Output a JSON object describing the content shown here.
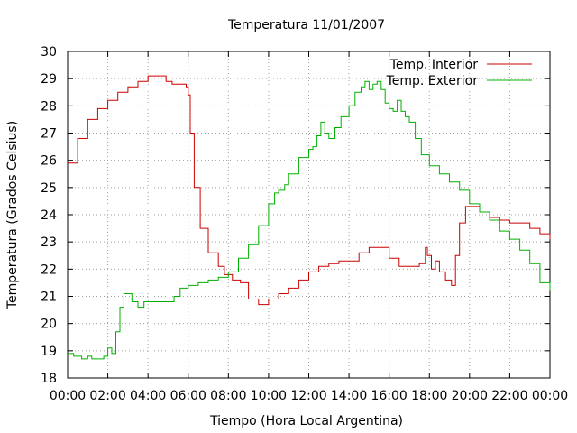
{
  "chart_data": {
    "type": "line",
    "title": "Temperatura 11/01/2007",
    "xlabel": "Tiempo (Hora Local Argentina)",
    "ylabel": "Temperatura (Grados Celsius)",
    "xlim": [
      0,
      24
    ],
    "ylim": [
      18,
      30
    ],
    "x_tick_labels": [
      "00:00",
      "02:00",
      "04:00",
      "06:00",
      "08:00",
      "10:00",
      "12:00",
      "14:00",
      "16:00",
      "18:00",
      "20:00",
      "22:00",
      "00:00"
    ],
    "y_tick_labels": [
      "18",
      "19",
      "20",
      "21",
      "22",
      "23",
      "24",
      "25",
      "26",
      "27",
      "28",
      "29",
      "30"
    ],
    "grid": true,
    "legend_position": "top-right",
    "series": [
      {
        "name": "Temp. Interior",
        "color": "#cc0000",
        "x": [
          0,
          0.5,
          1,
          1.5,
          2,
          2.5,
          3,
          3.5,
          4,
          4.5,
          4.9,
          5.2,
          5.6,
          5.9,
          6.0,
          6.1,
          6.3,
          6.6,
          7.0,
          7.5,
          7.8,
          8.2,
          8.6,
          9.0,
          9.5,
          10.0,
          10.5,
          11.0,
          11.5,
          12.0,
          12.5,
          13.0,
          13.5,
          14.0,
          14.5,
          15.0,
          15.5,
          16.0,
          16.5,
          17.0,
          17.5,
          17.8,
          17.9,
          18.1,
          18.3,
          18.5,
          18.8,
          19.1,
          19.3,
          19.5,
          19.8,
          20.1,
          20.5,
          21.0,
          21.5,
          22.0,
          22.5,
          23.0,
          23.5,
          24.0
        ],
        "y": [
          25.9,
          26.8,
          27.5,
          27.9,
          28.2,
          28.5,
          28.7,
          28.9,
          29.1,
          29.1,
          28.9,
          28.8,
          28.8,
          28.7,
          28.4,
          27.0,
          25.0,
          23.5,
          22.6,
          22.1,
          21.8,
          21.6,
          21.5,
          20.9,
          20.7,
          20.9,
          21.1,
          21.3,
          21.6,
          21.9,
          22.1,
          22.2,
          22.3,
          22.3,
          22.6,
          22.8,
          22.8,
          22.4,
          22.1,
          22.1,
          22.2,
          22.8,
          22.5,
          22.0,
          22.3,
          21.9,
          21.6,
          21.4,
          22.5,
          23.7,
          24.3,
          24.3,
          24.1,
          23.9,
          23.8,
          23.7,
          23.7,
          23.5,
          23.3,
          23.1
        ]
      },
      {
        "name": "Temp. Exterior",
        "color": "#00b000",
        "x": [
          0,
          0.3,
          0.7,
          1.0,
          1.2,
          1.5,
          1.8,
          2.0,
          2.2,
          2.4,
          2.6,
          2.8,
          3.0,
          3.2,
          3.5,
          3.8,
          4.0,
          4.5,
          5.0,
          5.3,
          5.6,
          6.0,
          6.5,
          7.0,
          7.5,
          8.0,
          8.5,
          9.0,
          9.5,
          10.0,
          10.3,
          10.5,
          10.8,
          11.0,
          11.5,
          12.0,
          12.2,
          12.4,
          12.6,
          12.8,
          13.0,
          13.3,
          13.6,
          14.0,
          14.3,
          14.6,
          14.8,
          15.0,
          15.2,
          15.4,
          15.6,
          15.8,
          16.0,
          16.2,
          16.4,
          16.6,
          16.8,
          17.0,
          17.3,
          17.6,
          18.0,
          18.5,
          19.0,
          19.5,
          20.0,
          20.5,
          21.0,
          21.5,
          22.0,
          22.5,
          23.0,
          23.5,
          24.0
        ],
        "y": [
          18.9,
          18.8,
          18.7,
          18.8,
          18.7,
          18.7,
          18.8,
          19.1,
          18.9,
          19.7,
          20.6,
          21.1,
          21.1,
          20.8,
          20.6,
          20.8,
          20.8,
          20.8,
          20.8,
          21.0,
          21.3,
          21.4,
          21.5,
          21.6,
          21.7,
          21.9,
          22.4,
          22.9,
          23.6,
          24.4,
          24.8,
          24.9,
          25.1,
          25.5,
          26.1,
          26.4,
          26.5,
          26.9,
          27.4,
          27.0,
          26.8,
          27.2,
          27.6,
          28.0,
          28.5,
          28.7,
          28.9,
          28.6,
          28.8,
          28.9,
          28.6,
          28.1,
          27.9,
          27.8,
          28.2,
          27.8,
          27.6,
          27.4,
          26.8,
          26.2,
          25.8,
          25.5,
          25.2,
          24.9,
          24.4,
          24.1,
          23.8,
          23.4,
          23.1,
          22.7,
          22.2,
          21.5,
          21.2
        ]
      }
    ]
  }
}
